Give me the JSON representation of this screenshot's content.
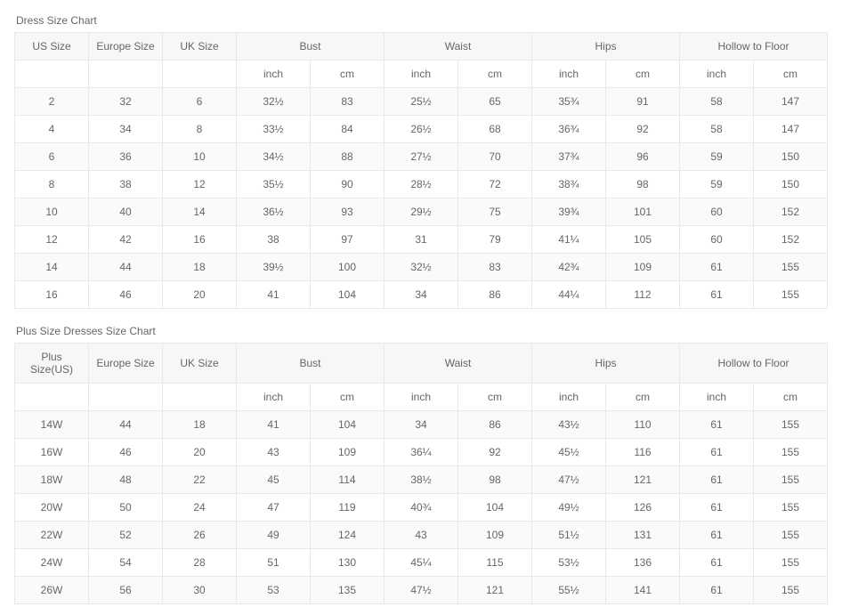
{
  "table1": {
    "title": "Dress Size Chart",
    "headers_top": [
      "US Size",
      "Europe Size",
      "UK Size",
      "Bust",
      "Waist",
      "Hips",
      "Hollow to Floor"
    ],
    "sub_units": [
      "inch",
      "cm"
    ],
    "rows": [
      [
        "2",
        "32",
        "6",
        "32½",
        "83",
        "25½",
        "65",
        "35¾",
        "91",
        "58",
        "147"
      ],
      [
        "4",
        "34",
        "8",
        "33½",
        "84",
        "26½",
        "68",
        "36¾",
        "92",
        "58",
        "147"
      ],
      [
        "6",
        "36",
        "10",
        "34½",
        "88",
        "27½",
        "70",
        "37¾",
        "96",
        "59",
        "150"
      ],
      [
        "8",
        "38",
        "12",
        "35½",
        "90",
        "28½",
        "72",
        "38¾",
        "98",
        "59",
        "150"
      ],
      [
        "10",
        "40",
        "14",
        "36½",
        "93",
        "29½",
        "75",
        "39¾",
        "101",
        "60",
        "152"
      ],
      [
        "12",
        "42",
        "16",
        "38",
        "97",
        "31",
        "79",
        "41¼",
        "105",
        "60",
        "152"
      ],
      [
        "14",
        "44",
        "18",
        "39½",
        "100",
        "32½",
        "83",
        "42¾",
        "109",
        "61",
        "155"
      ],
      [
        "16",
        "46",
        "20",
        "41",
        "104",
        "34",
        "86",
        "44¼",
        "112",
        "61",
        "155"
      ]
    ]
  },
  "table2": {
    "title": "Plus Size Dresses Size Chart",
    "headers_top": [
      "Plus Size(US)",
      "Europe Size",
      "UK Size",
      "Bust",
      "Waist",
      "Hips",
      "Hollow to Floor"
    ],
    "sub_units": [
      "inch",
      "cm"
    ],
    "rows": [
      [
        "14W",
        "44",
        "18",
        "41",
        "104",
        "34",
        "86",
        "43½",
        "110",
        "61",
        "155"
      ],
      [
        "16W",
        "46",
        "20",
        "43",
        "109",
        "36¼",
        "92",
        "45½",
        "116",
        "61",
        "155"
      ],
      [
        "18W",
        "48",
        "22",
        "45",
        "114",
        "38½",
        "98",
        "47½",
        "121",
        "61",
        "155"
      ],
      [
        "20W",
        "50",
        "24",
        "47",
        "119",
        "40¾",
        "104",
        "49½",
        "126",
        "61",
        "155"
      ],
      [
        "22W",
        "52",
        "26",
        "49",
        "124",
        "43",
        "109",
        "51½",
        "131",
        "61",
        "155"
      ],
      [
        "24W",
        "54",
        "28",
        "51",
        "130",
        "45¼",
        "115",
        "53½",
        "136",
        "61",
        "155"
      ],
      [
        "26W",
        "56",
        "30",
        "53",
        "135",
        "47½",
        "121",
        "55½",
        "141",
        "61",
        "155"
      ]
    ]
  },
  "styling": {
    "border_color": "#e8e8e8",
    "header_bg": "#f7f7f7",
    "row_alt_bg": "#fafafa",
    "text_color": "#666666",
    "font_size_pt": 9,
    "col_count": 11
  }
}
